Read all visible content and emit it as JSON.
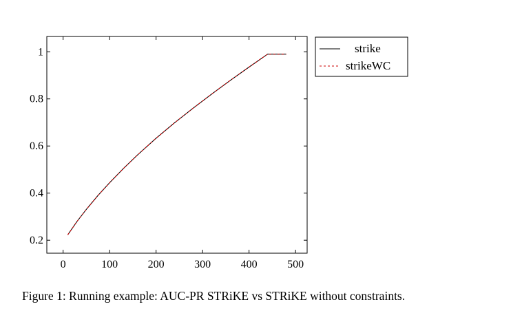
{
  "caption": "Figure 1: Running example: AUC-PR STRiKE vs STRiKE without constraints.",
  "chart_data": {
    "type": "line",
    "title": "",
    "xlabel": "",
    "ylabel": "",
    "xlim": [
      -35,
      525
    ],
    "ylim": [
      0.145,
      1.065
    ],
    "xticks": [
      0,
      100,
      200,
      300,
      400,
      500
    ],
    "yticks": [
      0.2,
      0.4,
      0.6,
      0.8,
      1
    ],
    "xtick_labels": [
      "0",
      "100",
      "200",
      "300",
      "400",
      "500"
    ],
    "ytick_labels": [
      "0.2",
      "0.4",
      "0.6",
      "0.8",
      "1"
    ],
    "grid": false,
    "legend_position": "outside-top-right",
    "series": [
      {
        "name": "strike",
        "style": "solid",
        "color": "#000000",
        "x": [
          10,
          30,
          50,
          75,
          100,
          130,
          160,
          200,
          240,
          280,
          320,
          360,
          400,
          440,
          480
        ],
        "y": [
          0.223,
          0.28,
          0.331,
          0.39,
          0.444,
          0.505,
          0.562,
          0.633,
          0.699,
          0.761,
          0.821,
          0.879,
          0.935,
          0.99,
          0.99
        ]
      },
      {
        "name": "strikeWC",
        "style": "dashed",
        "color": "#cc0000",
        "x": [
          10,
          30,
          50,
          75,
          100,
          130,
          160,
          200,
          240,
          280,
          320,
          360,
          400,
          440,
          480
        ],
        "y": [
          0.223,
          0.28,
          0.331,
          0.39,
          0.444,
          0.505,
          0.562,
          0.633,
          0.699,
          0.761,
          0.821,
          0.879,
          0.935,
          0.99,
          0.99
        ]
      }
    ]
  }
}
